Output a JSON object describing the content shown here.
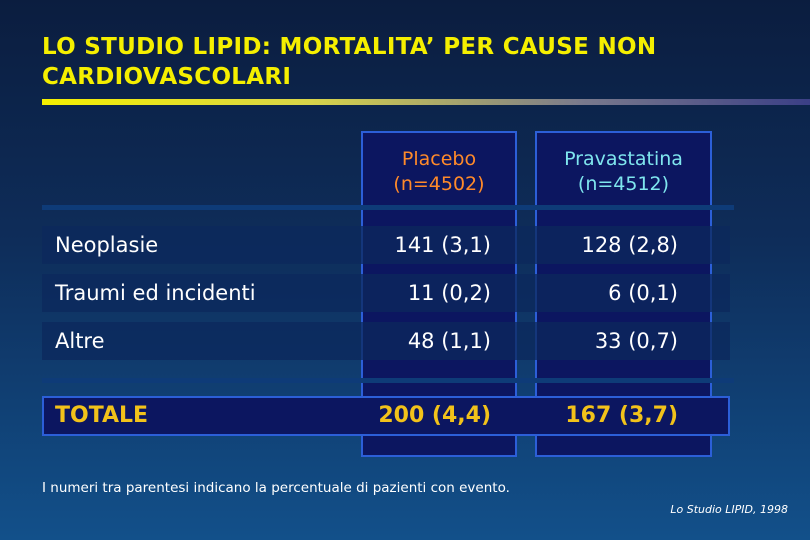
{
  "title": "LO STUDIO LIPID: MORTALITA’ PER CAUSE NON CARDIOVASCOLARI",
  "columns": [
    {
      "label": "Placebo",
      "n": "(n=4502)"
    },
    {
      "label": "Pravastatina",
      "n": "(n=4512)"
    }
  ],
  "rows": [
    {
      "label": "Neoplasie",
      "placebo": "141 (3,1)",
      "prava": "128 (2,8)"
    },
    {
      "label": "Traumi ed incidenti",
      "placebo": "11 (0,2)",
      "prava": "6 (0,1)"
    },
    {
      "label": "Altre",
      "placebo": "48 (1,1)",
      "prava": "33 (0,7)"
    }
  ],
  "total": {
    "label": "TOTALE",
    "placebo": "200 (4,4)",
    "prava": "167 (3,7)"
  },
  "footnote": "I numeri tra parentesi indicano la percentuale di pazienti con evento.",
  "source": "Lo Studio LIPID, 1998",
  "colors": {
    "title": "#f5ef00",
    "placebo_header": "#ff8a2a",
    "prava_header": "#7fe6ee",
    "total": "#f2c21a"
  }
}
